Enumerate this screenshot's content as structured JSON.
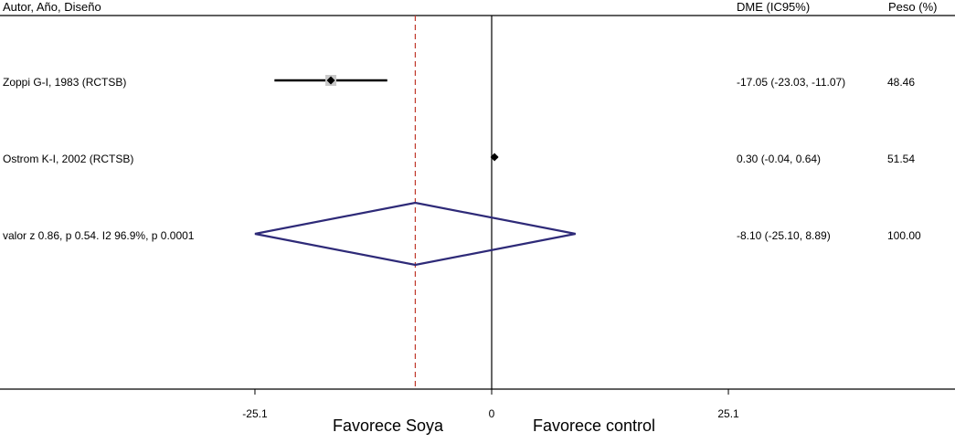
{
  "header": {
    "study_col": "Autor, Año, Diseño",
    "effect_col": "DME (IC95%)",
    "weight_col": "Peso (%)"
  },
  "chart_data": {
    "type": "forest",
    "studies": [
      {
        "label": "Zoppi G-I, 1983 (RCTSB)",
        "estimate": -17.05,
        "ci_low": -23.03,
        "ci_high": -11.07,
        "effect_text": "-17.05 (-23.03, -11.07)",
        "weight_text": "48.46"
      },
      {
        "label": "Ostrom K-I, 2002 (RCTSB)",
        "estimate": 0.3,
        "ci_low": -0.04,
        "ci_high": 0.64,
        "effect_text": "0.30 (-0.04, 0.64)",
        "weight_text": "51.54"
      }
    ],
    "overall": {
      "label": "valor z 0.86, p 0.54. I2 96.9%, p 0.0001",
      "estimate": -8.1,
      "ci_low": -25.1,
      "ci_high": 8.89,
      "effect_text": "-8.10 (-25.10, 8.89)",
      "weight_text": "100.00"
    },
    "x_ticks": [
      {
        "value": -25.1,
        "label": "-25.1"
      },
      {
        "value": 0,
        "label": "0"
      },
      {
        "value": 25.1,
        "label": "25.1"
      }
    ],
    "xlabel_left": "Favorece Soya",
    "xlabel_right": "Favorece control",
    "null_line": 0,
    "pooled_line": -8.1,
    "colors": {
      "diamond": "#2e2a78",
      "pooled_line": "#c0392b"
    }
  }
}
